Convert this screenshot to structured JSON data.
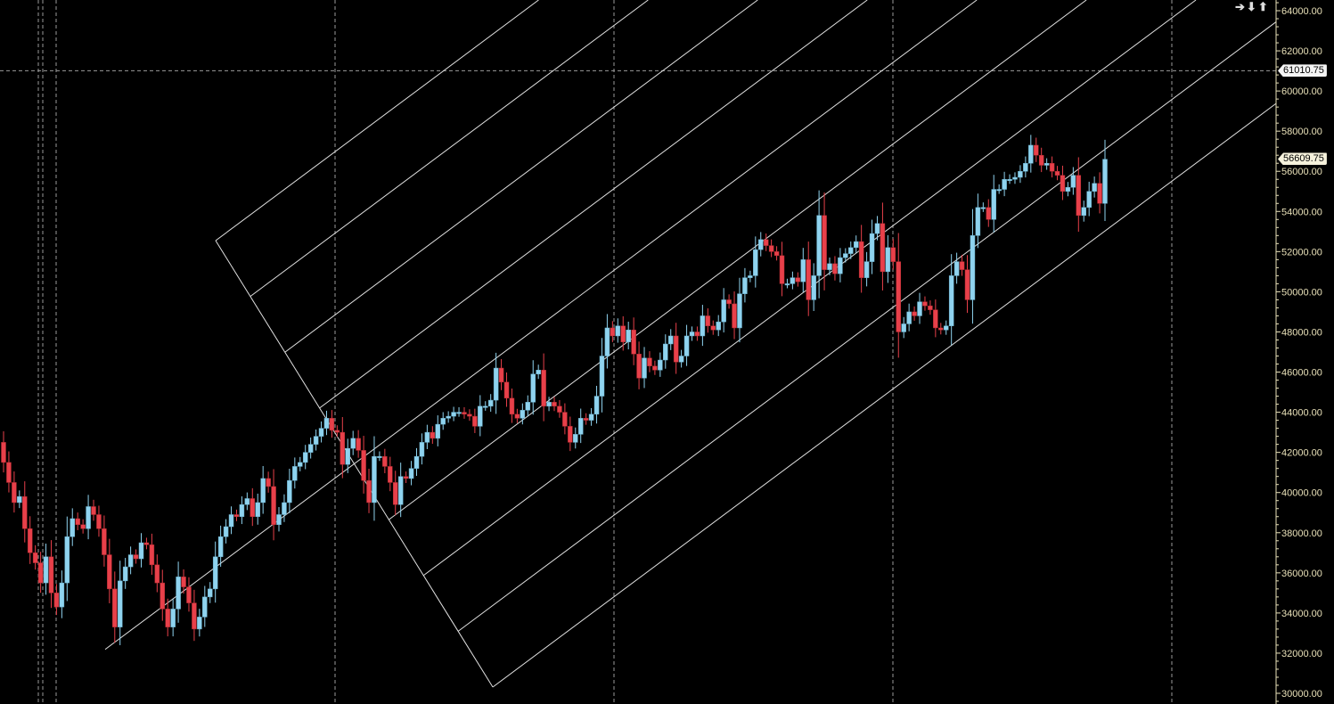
{
  "toolbar": {
    "icons": [
      "arrow-right-icon",
      "arrow-down-icon",
      "arrow-up-icon"
    ],
    "glyphs": [
      "➔",
      "⬇",
      "⬆"
    ]
  },
  "colors": {
    "up": "#8fd3ef",
    "down": "#e8404a",
    "background": "#000000",
    "axis": "#e8e0b8",
    "lines": "#e0e0e0"
  },
  "chart_data": {
    "type": "candlestick",
    "ylim": [
      30000,
      64000
    ],
    "yticks": [
      "64000.00",
      "62000.00",
      "60000.00",
      "58000.00",
      "56000.00",
      "54000.00",
      "52000.00",
      "50000.00",
      "48000.00",
      "46000.00",
      "44000.00",
      "42000.00",
      "40000.00",
      "38000.00",
      "36000.00",
      "34000.00",
      "32000.00",
      "30000.00"
    ],
    "grid": "vertical dashed",
    "crosshair_price": "61010.75",
    "last_price": "56609.75",
    "close": [
      41500,
      40500,
      39500,
      39800,
      38200,
      37000,
      36500,
      35500,
      36800,
      35000,
      34300,
      35500,
      37800,
      38700,
      38400,
      38200,
      39300,
      38900,
      38200,
      36900,
      35200,
      33300,
      35600,
      36300,
      36900,
      36700,
      37500,
      37400,
      36400,
      35500,
      34200,
      33300,
      34200,
      35800,
      35300,
      34500,
      33200,
      33800,
      34800,
      35200,
      36800,
      37800,
      38300,
      38900,
      38800,
      39400,
      39700,
      38800,
      39500,
      40700,
      40300,
      38400,
      38900,
      39500,
      40600,
      41300,
      41500,
      42000,
      42400,
      42800,
      43200,
      43700,
      43100,
      43000,
      41400,
      42200,
      42700,
      42100,
      40600,
      39500,
      41800,
      41800,
      41300,
      40500,
      39400,
      40800,
      40700,
      41200,
      41800,
      42500,
      43000,
      42700,
      43400,
      43700,
      43800,
      44000,
      44000,
      43900,
      43800,
      43300,
      44300,
      44300,
      44600,
      46200,
      45500,
      44700,
      43900,
      43700,
      44100,
      44500,
      45900,
      46100,
      44300,
      44500,
      44300,
      44000,
      43300,
      42500,
      42900,
      43700,
      43600,
      43900,
      44800,
      46800,
      48200,
      47800,
      48300,
      47500,
      48100,
      46900,
      45700,
      46700,
      46300,
      46100,
      46600,
      47400,
      47800,
      46500,
      46800,
      47800,
      48000,
      47800,
      48800,
      48300,
      48100,
      48500,
      49600,
      49400,
      48200,
      49900,
      50700,
      50800,
      52100,
      52600,
      52300,
      52000,
      51800,
      50400,
      50400,
      50700,
      50500,
      51600,
      49600,
      50800,
      53800,
      51100,
      51400,
      50900,
      51700,
      51900,
      52200,
      52500,
      50700,
      51500,
      52900,
      53400,
      51000,
      52200,
      51500,
      48000,
      48400,
      49000,
      48800,
      49500,
      49300,
      49100,
      48200,
      48100,
      48300,
      50800,
      51500,
      51100,
      49600,
      52800,
      54200,
      54200,
      53600,
      55100,
      55100,
      55600,
      55600,
      55700,
      56000,
      56400,
      57300,
      56800,
      56300,
      56400,
      56000,
      55800,
      55000,
      55200,
      55800,
      53800,
      54200,
      55000,
      55400,
      54400,
      56600
    ]
  }
}
